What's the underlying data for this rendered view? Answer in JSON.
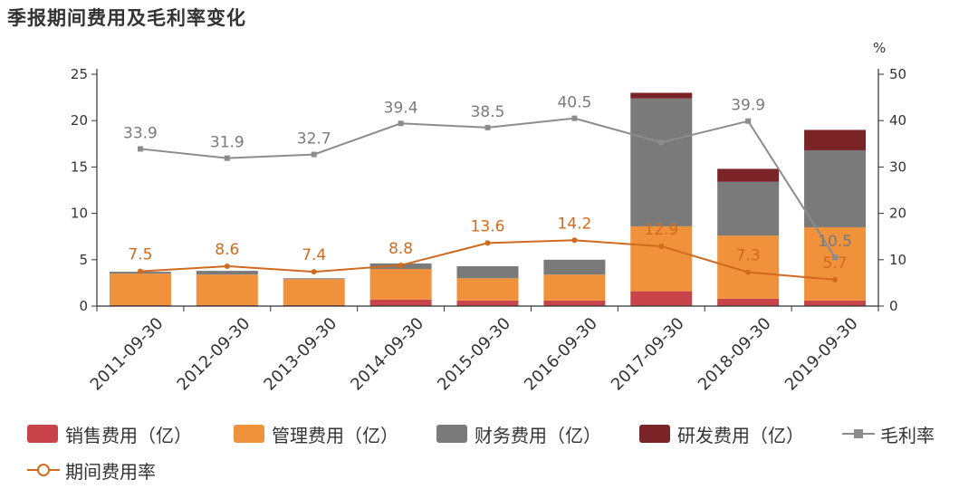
{
  "title": "季报期间费用及毛利率变化",
  "colors": {
    "sales": "#c9444a",
    "admin": "#f0923c",
    "finance": "#7a7a7a",
    "rd": "#7a2428",
    "gross": "#8c8c8c",
    "period": "#d06a1e"
  },
  "chart_data": {
    "type": "bar",
    "stacked": true,
    "categories": [
      "2011-09-30",
      "2012-09-30",
      "2013-09-30",
      "2014-09-30",
      "2015-09-30",
      "2016-09-30",
      "2017-09-30",
      "2018-09-30",
      "2019-09-30"
    ],
    "left_axis": {
      "ylim": [
        0,
        25
      ],
      "ticks": [
        0,
        5,
        10,
        15,
        20,
        25
      ]
    },
    "right_axis": {
      "unit": "%",
      "ylim": [
        0,
        50
      ],
      "ticks": [
        0,
        10,
        20,
        30,
        40,
        50
      ]
    },
    "series": [
      {
        "name": "销售费用（亿）",
        "kind": "bar",
        "axis": "left",
        "values": [
          0.1,
          0.1,
          0.1,
          0.7,
          0.6,
          0.6,
          1.6,
          0.8,
          0.6
        ]
      },
      {
        "name": "管理费用（亿）",
        "kind": "bar",
        "axis": "left",
        "values": [
          3.4,
          3.3,
          2.8,
          3.3,
          2.4,
          2.8,
          7.0,
          6.8,
          7.9
        ]
      },
      {
        "name": "财务费用（亿）",
        "kind": "bar",
        "axis": "left",
        "values": [
          0.2,
          0.4,
          0.1,
          0.6,
          1.3,
          1.6,
          13.8,
          5.8,
          8.3
        ]
      },
      {
        "name": "研发费用（亿）",
        "kind": "bar",
        "axis": "left",
        "values": [
          0,
          0,
          0,
          0,
          0,
          0,
          0.6,
          1.4,
          2.2
        ]
      },
      {
        "name": "毛利率",
        "kind": "line",
        "axis": "right",
        "values": [
          33.9,
          31.9,
          32.7,
          39.4,
          38.5,
          40.5,
          35.3,
          39.9,
          10.5
        ],
        "labels": [
          "33.9",
          "31.9",
          "32.7",
          "39.4",
          "38.5",
          "40.5",
          "",
          "39.9",
          "10.5"
        ]
      },
      {
        "name": "期间费用率",
        "kind": "line",
        "axis": "right",
        "values": [
          7.5,
          8.6,
          7.4,
          8.8,
          13.6,
          14.2,
          12.9,
          7.3,
          5.7
        ],
        "labels": [
          "7.5",
          "8.6",
          "7.4",
          "8.8",
          "13.6",
          "14.2",
          "12.9",
          "7.3",
          "5.7"
        ]
      }
    ],
    "grid": false,
    "legend_position": "bottom"
  }
}
